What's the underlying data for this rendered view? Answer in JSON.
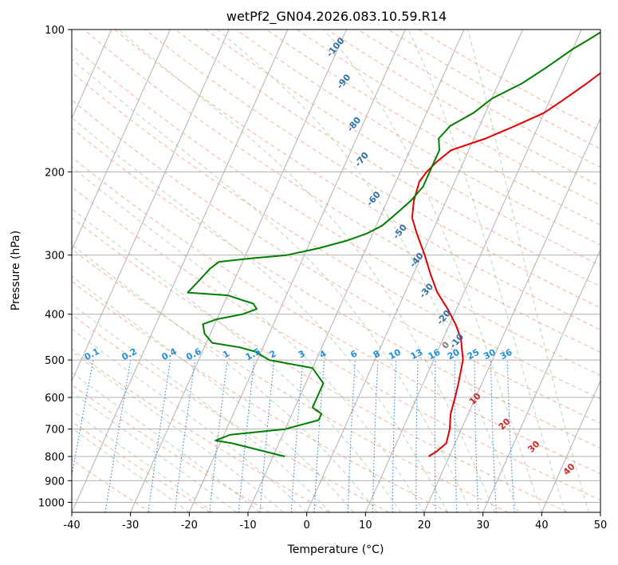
{
  "chart_data": {
    "type": "line",
    "title": "wetPf2_GN04.2026.083.10.59.R14",
    "xlabel": "Temperature (°C)",
    "ylabel": "Pressure (hPa)",
    "xlim": [
      -40,
      50
    ],
    "ylim": [
      1050,
      100
    ],
    "y_scale": "log",
    "grid": true,
    "x_ticks": [
      -40,
      -30,
      -20,
      -10,
      0,
      10,
      20,
      30,
      40,
      50
    ],
    "y_ticks": [
      100,
      200,
      300,
      400,
      500,
      600,
      700,
      800,
      900,
      1000
    ],
    "series": [
      {
        "kind": "temperature",
        "color": "#e00000",
        "points": [
          [
            16.5,
            800
          ],
          [
            17.5,
            780
          ],
          [
            18.5,
            750
          ],
          [
            18.0,
            700
          ],
          [
            17.0,
            650
          ],
          [
            16.5,
            600
          ],
          [
            16.0,
            560
          ],
          [
            15.0,
            500
          ],
          [
            13.0,
            450
          ],
          [
            11.0,
            420
          ],
          [
            8.5,
            390
          ],
          [
            5.5,
            360
          ],
          [
            3.0,
            330
          ],
          [
            0.5,
            300
          ],
          [
            -2.5,
            270
          ],
          [
            -4.5,
            250
          ],
          [
            -5.5,
            230
          ],
          [
            -6.0,
            210
          ],
          [
            -5.5,
            200
          ],
          [
            -4.5,
            190
          ],
          [
            -3.0,
            180
          ],
          [
            2.0,
            170
          ],
          [
            6.0,
            160
          ],
          [
            10.0,
            150
          ],
          [
            12.5,
            140
          ],
          [
            15.0,
            130
          ],
          [
            17.5,
            120
          ],
          [
            19.5,
            110
          ],
          [
            22.0,
            105
          ],
          [
            24.5,
            100
          ]
        ]
      },
      {
        "kind": "dewpoint",
        "color": "#008000",
        "points": [
          [
            -8,
            800
          ],
          [
            -18,
            750
          ],
          [
            -21,
            740
          ],
          [
            -19,
            720
          ],
          [
            -10,
            700
          ],
          [
            -5,
            670
          ],
          [
            -5,
            650
          ],
          [
            -7,
            630
          ],
          [
            -7,
            600
          ],
          [
            -7,
            560
          ],
          [
            -10,
            520
          ],
          [
            -18,
            500
          ],
          [
            -21,
            480
          ],
          [
            -24,
            470
          ],
          [
            -29,
            460
          ],
          [
            -31,
            440
          ],
          [
            -32,
            420
          ],
          [
            -30,
            410
          ],
          [
            -26,
            400
          ],
          [
            -24,
            390
          ],
          [
            -25,
            380
          ],
          [
            -30,
            365
          ],
          [
            -37,
            360
          ],
          [
            -36,
            340
          ],
          [
            -35,
            320
          ],
          [
            -34,
            310
          ],
          [
            -29,
            305
          ],
          [
            -23,
            300
          ],
          [
            -18,
            290
          ],
          [
            -14,
            280
          ],
          [
            -11,
            270
          ],
          [
            -9,
            260
          ],
          [
            -8,
            250
          ],
          [
            -7,
            240
          ],
          [
            -6,
            230
          ],
          [
            -5,
            215
          ],
          [
            -5,
            200
          ],
          [
            -5,
            190
          ],
          [
            -5,
            180
          ],
          [
            -6,
            170
          ],
          [
            -5,
            160
          ],
          [
            -2,
            150
          ],
          [
            0,
            140
          ],
          [
            4,
            130
          ],
          [
            7,
            120
          ],
          [
            10,
            110
          ],
          [
            12,
            105
          ],
          [
            14,
            100
          ]
        ]
      }
    ],
    "dry_adiabat_labels": [
      {
        "text": "-100",
        "t": -30,
        "p": 110
      },
      {
        "text": "-90",
        "t": -26,
        "p": 130
      },
      {
        "text": "-80",
        "t": -21,
        "p": 160
      },
      {
        "text": "-70",
        "t": -17,
        "p": 190
      },
      {
        "text": "-60",
        "t": -12,
        "p": 230
      },
      {
        "text": "-50",
        "t": -5,
        "p": 270
      },
      {
        "text": "-40",
        "t": 0,
        "p": 310
      },
      {
        "text": "-30",
        "t": 4,
        "p": 360
      },
      {
        "text": "-20",
        "t": 9,
        "p": 410
      },
      {
        "text": "-10",
        "t": 13,
        "p": 460
      }
    ],
    "mixing_ratio_labels": [
      "0.1",
      "0.2",
      "0.4",
      "0.6",
      "1",
      "1.5",
      "2",
      "3",
      "4",
      "6",
      "8",
      "10",
      "13",
      "16",
      "20",
      "25",
      "30",
      "36"
    ],
    "moist_adiabat_labels": [
      "0",
      "10",
      "20",
      "30",
      "40"
    ]
  }
}
